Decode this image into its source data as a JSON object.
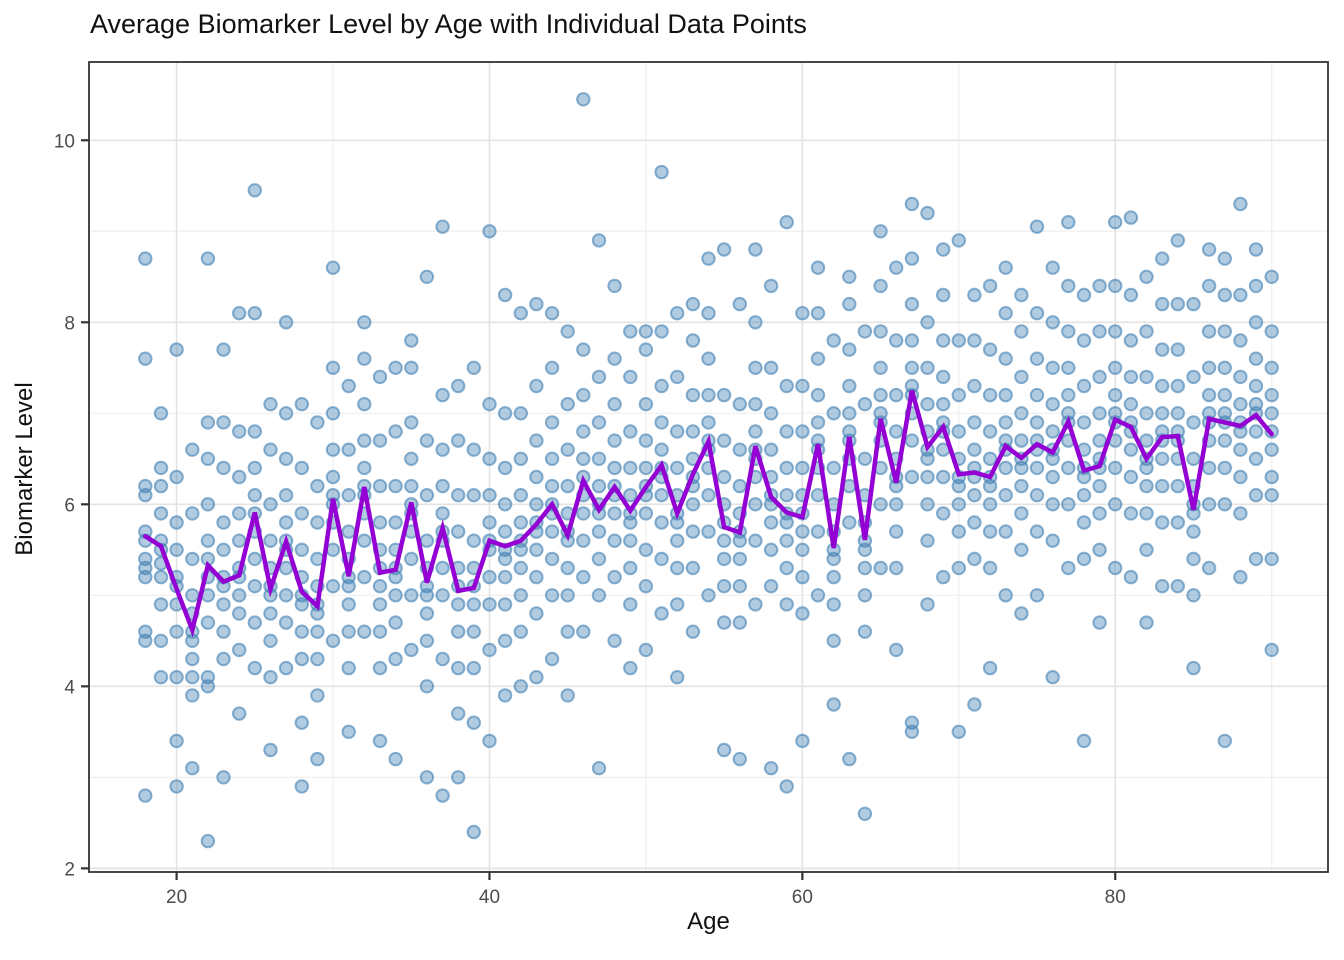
{
  "title": "Average Biomarker Level by Age with Individual Data Points",
  "chart_data": {
    "type": "scatter",
    "title": "Average Biomarker Level by Age with Individual Data Points",
    "xlabel": "Age",
    "ylabel": "Biomarker Level",
    "xlim": [
      14.4,
      93.6
    ],
    "ylim": [
      1.96,
      10.86
    ],
    "x_ticks": [
      20,
      40,
      60,
      80
    ],
    "y_ticks": [
      2,
      4,
      6,
      8,
      10
    ],
    "x_minor": [
      30,
      50,
      70,
      90
    ],
    "y_minor": [
      3,
      5,
      7,
      9
    ],
    "grid": true,
    "legend_position": "none",
    "background": "#ffffff",
    "series": [
      {
        "name": "individual-points",
        "type": "scatter",
        "color": "#4682B4",
        "opacity": 0.42,
        "points_by_age": {
          "18": [
            2.8,
            4.5,
            4.6,
            5.2,
            5.3,
            5.4,
            5.6,
            5.7,
            6.1,
            6.2,
            7.6,
            8.7
          ],
          "19": [
            4.1,
            4.5,
            4.9,
            5.2,
            5.35,
            5.5,
            5.6,
            5.9,
            6.2,
            6.4,
            7.0
          ],
          "20": [
            2.9,
            3.4,
            4.1,
            4.6,
            4.9,
            5.1,
            5.2,
            5.5,
            5.8,
            6.3,
            7.7
          ],
          "21": [
            3.1,
            3.9,
            4.1,
            4.3,
            4.5,
            4.6,
            4.8,
            5.0,
            5.4,
            5.9,
            6.6
          ],
          "22": [
            2.3,
            4.0,
            4.1,
            4.7,
            5.0,
            5.2,
            5.4,
            5.6,
            6.0,
            6.5,
            6.9,
            8.7
          ],
          "23": [
            3.0,
            4.3,
            4.6,
            4.9,
            5.1,
            5.2,
            5.5,
            5.8,
            6.4,
            6.9,
            7.7
          ],
          "24": [
            3.7,
            4.4,
            4.8,
            5.0,
            5.2,
            5.3,
            5.6,
            5.9,
            6.3,
            6.8,
            8.1
          ],
          "25": [
            4.2,
            4.7,
            5.1,
            5.4,
            5.7,
            5.9,
            6.1,
            6.4,
            6.8,
            8.1,
            9.45
          ],
          "26": [
            3.3,
            4.1,
            4.5,
            4.8,
            5.0,
            5.1,
            5.3,
            5.6,
            6.0,
            6.6,
            7.1
          ],
          "27": [
            4.2,
            4.7,
            5.0,
            5.3,
            5.5,
            5.6,
            5.8,
            6.1,
            6.5,
            7.0,
            8.0
          ],
          "28": [
            2.9,
            3.6,
            4.3,
            4.6,
            4.9,
            5.0,
            5.2,
            5.5,
            5.9,
            6.4,
            7.1
          ],
          "29": [
            3.2,
            3.9,
            4.3,
            4.6,
            4.8,
            4.9,
            5.1,
            5.4,
            5.8,
            6.2,
            6.9
          ],
          "30": [
            4.5,
            5.1,
            5.5,
            5.8,
            6.0,
            6.1,
            6.3,
            6.6,
            7.0,
            7.5,
            8.6
          ],
          "31": [
            3.5,
            4.2,
            4.6,
            4.9,
            5.1,
            5.2,
            5.4,
            5.7,
            6.1,
            6.6,
            7.3
          ],
          "32": [
            4.6,
            5.2,
            5.6,
            5.9,
            6.1,
            6.2,
            6.4,
            6.7,
            7.1,
            7.6,
            8.0
          ],
          "33": [
            3.4,
            4.2,
            4.6,
            4.9,
            5.1,
            5.3,
            5.5,
            5.8,
            6.2,
            6.7,
            7.4
          ],
          "34": [
            3.2,
            4.3,
            4.7,
            5.0,
            5.2,
            5.3,
            5.5,
            5.8,
            6.2,
            6.8,
            7.5
          ],
          "35": [
            4.4,
            5.0,
            5.4,
            5.7,
            5.9,
            6.0,
            6.2,
            6.5,
            6.9,
            7.5,
            7.8
          ],
          "36": [
            3.0,
            4.0,
            4.5,
            4.8,
            5.0,
            5.1,
            5.3,
            5.6,
            6.1,
            6.7,
            8.5
          ],
          "37": [
            2.8,
            4.3,
            5.0,
            5.3,
            5.6,
            5.7,
            5.9,
            6.2,
            6.6,
            7.2,
            9.05
          ],
          "38": [
            3.0,
            3.7,
            4.2,
            4.6,
            4.9,
            5.1,
            5.3,
            5.7,
            6.1,
            6.7,
            7.3
          ],
          "39": [
            2.4,
            3.6,
            4.2,
            4.6,
            4.9,
            5.1,
            5.3,
            5.6,
            6.1,
            6.6,
            7.5
          ],
          "40": [
            3.4,
            4.4,
            4.9,
            5.2,
            5.5,
            5.6,
            5.8,
            6.1,
            6.5,
            7.1,
            9.0
          ],
          "41": [
            3.9,
            4.5,
            4.9,
            5.2,
            5.4,
            5.5,
            5.7,
            6.0,
            6.4,
            7.0,
            8.3
          ],
          "42": [
            4.0,
            4.6,
            5.0,
            5.3,
            5.5,
            5.6,
            5.8,
            6.1,
            6.5,
            7.0,
            8.1
          ],
          "43": [
            4.1,
            4.8,
            5.2,
            5.5,
            5.7,
            5.8,
            6.0,
            6.3,
            6.7,
            7.3,
            8.2
          ],
          "44": [
            4.3,
            5.0,
            5.4,
            5.7,
            5.9,
            6.0,
            6.2,
            6.5,
            6.9,
            7.5,
            8.1
          ],
          "45": [
            3.9,
            4.6,
            5.0,
            5.3,
            5.6,
            5.7,
            5.9,
            6.2,
            6.6,
            7.1,
            7.9
          ],
          "46": [
            4.6,
            5.2,
            5.6,
            5.9,
            6.1,
            6.3,
            6.5,
            6.8,
            7.2,
            7.7,
            10.45
          ],
          "47": [
            3.1,
            5.0,
            5.4,
            5.7,
            5.9,
            6.0,
            6.2,
            6.5,
            6.9,
            7.4,
            8.9
          ],
          "48": [
            4.5,
            5.2,
            5.6,
            5.9,
            6.1,
            6.2,
            6.4,
            6.7,
            7.1,
            7.6,
            8.4
          ],
          "49": [
            4.2,
            4.9,
            5.3,
            5.6,
            5.8,
            5.9,
            6.1,
            6.4,
            6.8,
            7.4,
            7.9
          ],
          "50": [
            4.4,
            5.1,
            5.5,
            5.9,
            6.1,
            6.2,
            6.4,
            6.7,
            7.1,
            7.7,
            7.9
          ],
          "51": [
            4.8,
            5.4,
            5.8,
            6.1,
            6.3,
            6.4,
            6.6,
            6.9,
            7.3,
            7.9,
            9.65
          ],
          "52": [
            4.1,
            4.9,
            5.3,
            5.6,
            5.8,
            5.9,
            6.1,
            6.4,
            6.8,
            7.4,
            8.1
          ],
          "53": [
            4.6,
            5.3,
            5.7,
            6.0,
            6.2,
            6.3,
            6.5,
            6.8,
            7.2,
            7.8,
            8.2
          ],
          "54": [
            5.0,
            5.7,
            6.1,
            6.4,
            6.6,
            6.7,
            6.9,
            7.2,
            7.6,
            8.1,
            8.7
          ],
          "55": [
            3.3,
            4.7,
            5.1,
            5.4,
            5.6,
            5.8,
            6.0,
            6.3,
            6.7,
            7.2,
            8.8
          ],
          "56": [
            3.2,
            4.7,
            5.1,
            5.4,
            5.6,
            5.7,
            5.9,
            6.2,
            6.6,
            7.1,
            8.2
          ],
          "57": [
            4.9,
            5.6,
            6.0,
            6.3,
            6.5,
            6.6,
            6.8,
            7.1,
            7.5,
            8.0,
            8.8
          ],
          "58": [
            3.1,
            5.1,
            5.5,
            5.8,
            6.0,
            6.1,
            6.3,
            6.6,
            7.0,
            7.5,
            8.4
          ],
          "59": [
            2.9,
            4.9,
            5.3,
            5.6,
            5.8,
            5.9,
            6.1,
            6.4,
            6.8,
            7.3,
            9.1
          ],
          "60": [
            3.4,
            4.8,
            5.2,
            5.5,
            5.7,
            5.9,
            6.1,
            6.4,
            6.8,
            7.3,
            8.1
          ],
          "61": [
            5.0,
            5.7,
            6.1,
            6.4,
            6.6,
            6.7,
            6.9,
            7.2,
            7.6,
            8.1,
            8.6
          ],
          "62": [
            3.8,
            4.5,
            4.9,
            5.2,
            5.4,
            5.5,
            5.7,
            6.0,
            6.4,
            7.0,
            7.8
          ],
          "63": [
            3.2,
            5.8,
            6.2,
            6.5,
            6.7,
            6.8,
            7.0,
            7.3,
            7.7,
            8.2,
            8.5
          ],
          "64": [
            2.6,
            4.6,
            5.0,
            5.3,
            5.5,
            5.6,
            5.8,
            6.1,
            6.5,
            7.1,
            7.9
          ],
          "65": [
            5.3,
            6.0,
            6.4,
            6.7,
            6.9,
            7.0,
            7.2,
            7.5,
            7.9,
            8.4,
            9.0
          ],
          "66": [
            4.4,
            5.3,
            5.7,
            6.0,
            6.2,
            6.3,
            6.5,
            6.8,
            7.2,
            7.8,
            8.6
          ],
          "67": [
            3.5,
            3.6,
            6.3,
            6.7,
            7.0,
            7.2,
            7.3,
            7.5,
            7.8,
            8.2,
            8.7,
            9.3
          ],
          "68": [
            4.9,
            5.6,
            6.0,
            6.3,
            6.5,
            6.6,
            6.8,
            7.1,
            7.5,
            8.0,
            9.2
          ],
          "69": [
            5.2,
            5.9,
            6.3,
            6.6,
            6.8,
            6.9,
            7.1,
            7.4,
            7.8,
            8.3,
            8.8
          ],
          "70": [
            3.5,
            5.3,
            5.7,
            6.0,
            6.2,
            6.3,
            6.5,
            6.8,
            7.2,
            7.8,
            8.9
          ],
          "71": [
            3.8,
            5.4,
            5.8,
            6.1,
            6.3,
            6.4,
            6.6,
            6.9,
            7.3,
            7.8,
            8.3
          ],
          "72": [
            4.2,
            5.3,
            5.7,
            6.0,
            6.2,
            6.3,
            6.5,
            6.8,
            7.2,
            7.7,
            8.4
          ],
          "73": [
            5.0,
            5.7,
            6.1,
            6.4,
            6.6,
            6.7,
            6.9,
            7.2,
            7.6,
            8.1,
            8.6
          ],
          "74": [
            4.8,
            5.5,
            5.9,
            6.2,
            6.4,
            6.5,
            6.7,
            7.0,
            7.4,
            7.9,
            8.3
          ],
          "75": [
            5.0,
            5.7,
            6.1,
            6.4,
            6.6,
            6.7,
            6.9,
            7.2,
            7.6,
            8.1,
            9.05
          ],
          "76": [
            4.1,
            5.6,
            6.0,
            6.3,
            6.5,
            6.6,
            6.8,
            7.1,
            7.5,
            8.0,
            8.6
          ],
          "77": [
            5.3,
            6.0,
            6.4,
            6.7,
            6.9,
            7.0,
            7.2,
            7.5,
            7.9,
            8.4,
            9.1
          ],
          "78": [
            3.4,
            5.4,
            5.8,
            6.1,
            6.3,
            6.4,
            6.6,
            6.9,
            7.3,
            7.8,
            8.3
          ],
          "79": [
            4.7,
            5.5,
            5.9,
            6.2,
            6.4,
            6.5,
            6.7,
            7.0,
            7.4,
            7.9,
            8.4
          ],
          "80": [
            5.3,
            6.0,
            6.4,
            6.7,
            6.9,
            7.0,
            7.2,
            7.5,
            7.9,
            8.4,
            9.1
          ],
          "81": [
            5.2,
            5.9,
            6.3,
            6.6,
            6.8,
            6.9,
            7.1,
            7.4,
            7.8,
            8.3,
            9.15
          ],
          "82": [
            4.7,
            5.5,
            5.9,
            6.2,
            6.4,
            6.5,
            6.7,
            7.0,
            7.4,
            7.9,
            8.5
          ],
          "83": [
            5.1,
            5.8,
            6.2,
            6.5,
            6.7,
            6.8,
            7.0,
            7.3,
            7.7,
            8.2,
            8.7
          ],
          "84": [
            5.1,
            5.8,
            6.2,
            6.5,
            6.7,
            6.8,
            7.0,
            7.3,
            7.7,
            8.2,
            8.9
          ],
          "85": [
            4.2,
            5.0,
            5.4,
            5.7,
            5.9,
            6.0,
            6.2,
            6.5,
            6.9,
            7.4,
            8.2
          ],
          "86": [
            5.3,
            6.0,
            6.4,
            6.7,
            6.9,
            7.0,
            7.2,
            7.5,
            7.9,
            8.4,
            8.8
          ],
          "87": [
            3.4,
            6.0,
            6.4,
            6.7,
            6.9,
            7.0,
            7.2,
            7.5,
            7.9,
            8.3,
            8.7
          ],
          "88": [
            5.2,
            5.9,
            6.3,
            6.6,
            6.8,
            6.9,
            7.1,
            7.4,
            7.8,
            8.3,
            9.3
          ],
          "89": [
            5.4,
            6.1,
            6.5,
            6.8,
            7.0,
            7.1,
            7.3,
            7.6,
            8.0,
            8.4,
            8.8
          ],
          "90": [
            4.4,
            5.4,
            6.1,
            6.3,
            6.6,
            6.8,
            7.0,
            7.2,
            7.5,
            7.9,
            8.5
          ]
        }
      },
      {
        "name": "average-line",
        "type": "line",
        "color": "#9400D3",
        "width": 4.5,
        "x": [
          18,
          19,
          20,
          21,
          22,
          23,
          24,
          25,
          26,
          27,
          28,
          29,
          30,
          31,
          32,
          33,
          34,
          35,
          36,
          37,
          38,
          39,
          40,
          41,
          42,
          43,
          44,
          45,
          46,
          47,
          48,
          49,
          50,
          51,
          52,
          53,
          54,
          55,
          56,
          57,
          58,
          59,
          60,
          61,
          62,
          63,
          64,
          65,
          66,
          67,
          68,
          69,
          70,
          71,
          72,
          73,
          74,
          75,
          76,
          77,
          78,
          79,
          80,
          81,
          82,
          83,
          84,
          85,
          86,
          87,
          88,
          89,
          90
        ],
        "y": [
          5.65,
          5.54,
          5.07,
          4.62,
          5.33,
          5.15,
          5.22,
          5.91,
          5.07,
          5.59,
          5.04,
          4.88,
          6.06,
          5.21,
          6.19,
          5.25,
          5.28,
          6.02,
          5.14,
          5.74,
          5.05,
          5.08,
          5.6,
          5.54,
          5.6,
          5.78,
          6.0,
          5.66,
          6.26,
          5.94,
          6.19,
          5.93,
          6.19,
          6.43,
          5.9,
          6.33,
          6.69,
          5.75,
          5.69,
          6.64,
          6.08,
          5.91,
          5.86,
          6.66,
          5.52,
          6.74,
          5.61,
          6.94,
          6.24,
          7.25,
          6.63,
          6.85,
          6.33,
          6.35,
          6.3,
          6.64,
          6.51,
          6.66,
          6.57,
          6.91,
          6.37,
          6.42,
          6.93,
          6.85,
          6.5,
          6.74,
          6.75,
          5.94,
          6.94,
          6.9,
          6.86,
          6.98,
          6.77
        ]
      }
    ]
  },
  "style": {
    "point_color": "#4682B4",
    "point_fill_opacity": 0.42,
    "point_stroke_opacity": 0.62,
    "point_radius": 6.2,
    "line_color": "#9400D3",
    "line_width": 4.5,
    "grid_major_color": "#E3E3E3",
    "grid_minor_color": "#EFEFEF",
    "panel_border_color": "#333333",
    "tick_mark_color": "#333333",
    "tick_label_color": "#4D4D4D",
    "title_color": "#111111",
    "axis_title_color": "#111111",
    "panel_background": "#FFFFFF"
  }
}
